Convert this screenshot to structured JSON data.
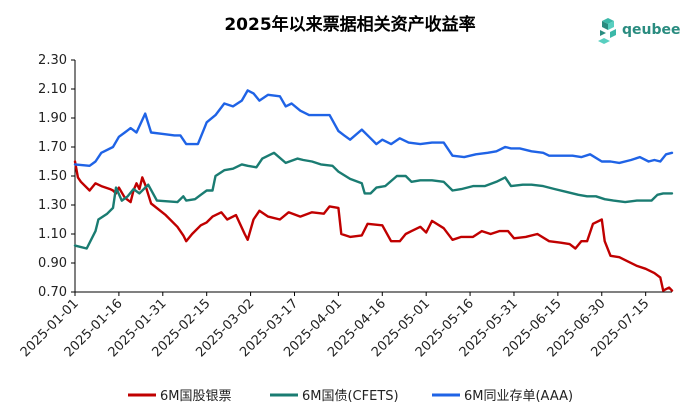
{
  "logo": {
    "text": "qeubee"
  },
  "chart_data": {
    "type": "line",
    "title": "2025年以来票据相关资产收益率",
    "xlabel": "",
    "ylabel": "",
    "ylim": [
      0.7,
      2.3
    ],
    "yticks": [
      "2.30",
      "2.10",
      "1.90",
      "1.70",
      "1.50",
      "1.30",
      "1.10",
      "0.90",
      "0.70"
    ],
    "xticks": [
      "2025-01-01",
      "2025-01-16",
      "2025-01-31",
      "2025-02-15",
      "2025-03-02",
      "2025-03-17",
      "2025-04-01",
      "2025-04-16",
      "2025-05-01",
      "2025-05-16",
      "2025-05-31",
      "2025-06-15",
      "2025-06-30",
      "2025-07-15"
    ],
    "x_range": [
      "2025-01-01",
      "2025-07-24"
    ],
    "grid": false,
    "legend_position": "bottom",
    "series": [
      {
        "name": "6M国股银票",
        "color": "#c00000",
        "points": [
          [
            "2025-01-01",
            1.6
          ],
          [
            "2025-01-02",
            1.49
          ],
          [
            "2025-01-03",
            1.46
          ],
          [
            "2025-01-06",
            1.4
          ],
          [
            "2025-01-08",
            1.45
          ],
          [
            "2025-01-10",
            1.43
          ],
          [
            "2025-01-13",
            1.41
          ],
          [
            "2025-01-14",
            1.4
          ],
          [
            "2025-01-15",
            1.38
          ],
          [
            "2025-01-16",
            1.42
          ],
          [
            "2025-01-18",
            1.35
          ],
          [
            "2025-01-20",
            1.32
          ],
          [
            "2025-01-21",
            1.4
          ],
          [
            "2025-01-22",
            1.45
          ],
          [
            "2025-01-23",
            1.41
          ],
          [
            "2025-01-24",
            1.49
          ],
          [
            "2025-01-25",
            1.44
          ],
          [
            "2025-01-27",
            1.31
          ],
          [
            "2025-02-01",
            1.23
          ],
          [
            "2025-02-05",
            1.15
          ],
          [
            "2025-02-07",
            1.09
          ],
          [
            "2025-02-08",
            1.05
          ],
          [
            "2025-02-10",
            1.1
          ],
          [
            "2025-02-13",
            1.16
          ],
          [
            "2025-02-15",
            1.18
          ],
          [
            "2025-02-17",
            1.22
          ],
          [
            "2025-02-20",
            1.25
          ],
          [
            "2025-02-22",
            1.2
          ],
          [
            "2025-02-25",
            1.23
          ],
          [
            "2025-02-28",
            1.1
          ],
          [
            "2025-03-01",
            1.06
          ],
          [
            "2025-03-03",
            1.2
          ],
          [
            "2025-03-05",
            1.26
          ],
          [
            "2025-03-08",
            1.22
          ],
          [
            "2025-03-12",
            1.2
          ],
          [
            "2025-03-15",
            1.25
          ],
          [
            "2025-03-19",
            1.22
          ],
          [
            "2025-03-23",
            1.25
          ],
          [
            "2025-03-27",
            1.24
          ],
          [
            "2025-03-29",
            1.29
          ],
          [
            "2025-04-01",
            1.28
          ],
          [
            "2025-04-02",
            1.1
          ],
          [
            "2025-04-05",
            1.08
          ],
          [
            "2025-04-09",
            1.09
          ],
          [
            "2025-04-11",
            1.17
          ],
          [
            "2025-04-16",
            1.16
          ],
          [
            "2025-04-19",
            1.05
          ],
          [
            "2025-04-22",
            1.05
          ],
          [
            "2025-04-24",
            1.1
          ],
          [
            "2025-04-26",
            1.12
          ],
          [
            "2025-04-29",
            1.15
          ],
          [
            "2025-05-01",
            1.11
          ],
          [
            "2025-05-03",
            1.19
          ],
          [
            "2025-05-07",
            1.14
          ],
          [
            "2025-05-10",
            1.06
          ],
          [
            "2025-05-13",
            1.08
          ],
          [
            "2025-05-17",
            1.08
          ],
          [
            "2025-05-20",
            1.12
          ],
          [
            "2025-05-23",
            1.1
          ],
          [
            "2025-05-26",
            1.12
          ],
          [
            "2025-05-29",
            1.12
          ],
          [
            "2025-05-31",
            1.07
          ],
          [
            "2025-06-04",
            1.08
          ],
          [
            "2025-06-08",
            1.1
          ],
          [
            "2025-06-12",
            1.05
          ],
          [
            "2025-06-16",
            1.04
          ],
          [
            "2025-06-19",
            1.03
          ],
          [
            "2025-06-21",
            1.0
          ],
          [
            "2025-06-23",
            1.05
          ],
          [
            "2025-06-25",
            1.05
          ],
          [
            "2025-06-27",
            1.17
          ],
          [
            "2025-06-30",
            1.2
          ],
          [
            "2025-07-01",
            1.05
          ],
          [
            "2025-07-03",
            0.95
          ],
          [
            "2025-07-06",
            0.94
          ],
          [
            "2025-07-09",
            0.91
          ],
          [
            "2025-07-12",
            0.88
          ],
          [
            "2025-07-15",
            0.86
          ],
          [
            "2025-07-18",
            0.83
          ],
          [
            "2025-07-20",
            0.8
          ],
          [
            "2025-07-21",
            0.71
          ],
          [
            "2025-07-23",
            0.73
          ],
          [
            "2025-07-24",
            0.71
          ]
        ]
      },
      {
        "name": "6M国债(CFETS)",
        "color": "#1a7c72",
        "points": [
          [
            "2025-01-01",
            1.02
          ],
          [
            "2025-01-05",
            1.0
          ],
          [
            "2025-01-08",
            1.12
          ],
          [
            "2025-01-09",
            1.2
          ],
          [
            "2025-01-12",
            1.24
          ],
          [
            "2025-01-14",
            1.28
          ],
          [
            "2025-01-15",
            1.42
          ],
          [
            "2025-01-17",
            1.33
          ],
          [
            "2025-01-19",
            1.36
          ],
          [
            "2025-01-21",
            1.41
          ],
          [
            "2025-01-23",
            1.38
          ],
          [
            "2025-01-26",
            1.44
          ],
          [
            "2025-01-29",
            1.33
          ],
          [
            "2025-02-05",
            1.32
          ],
          [
            "2025-02-07",
            1.36
          ],
          [
            "2025-02-08",
            1.33
          ],
          [
            "2025-02-11",
            1.34
          ],
          [
            "2025-02-13",
            1.37
          ],
          [
            "2025-02-15",
            1.4
          ],
          [
            "2025-02-17",
            1.4
          ],
          [
            "2025-02-18",
            1.5
          ],
          [
            "2025-02-21",
            1.54
          ],
          [
            "2025-02-24",
            1.55
          ],
          [
            "2025-02-27",
            1.58
          ],
          [
            "2025-03-01",
            1.57
          ],
          [
            "2025-03-04",
            1.56
          ],
          [
            "2025-03-06",
            1.62
          ],
          [
            "2025-03-10",
            1.66
          ],
          [
            "2025-03-14",
            1.59
          ],
          [
            "2025-03-18",
            1.62
          ],
          [
            "2025-03-20",
            1.61
          ],
          [
            "2025-03-23",
            1.6
          ],
          [
            "2025-03-26",
            1.58
          ],
          [
            "2025-03-30",
            1.57
          ],
          [
            "2025-04-01",
            1.53
          ],
          [
            "2025-04-05",
            1.48
          ],
          [
            "2025-04-09",
            1.45
          ],
          [
            "2025-04-10",
            1.38
          ],
          [
            "2025-04-12",
            1.38
          ],
          [
            "2025-04-14",
            1.42
          ],
          [
            "2025-04-17",
            1.43
          ],
          [
            "2025-04-21",
            1.5
          ],
          [
            "2025-04-24",
            1.5
          ],
          [
            "2025-04-26",
            1.46
          ],
          [
            "2025-04-29",
            1.47
          ],
          [
            "2025-05-03",
            1.47
          ],
          [
            "2025-05-07",
            1.46
          ],
          [
            "2025-05-10",
            1.4
          ],
          [
            "2025-05-13",
            1.41
          ],
          [
            "2025-05-17",
            1.43
          ],
          [
            "2025-05-21",
            1.43
          ],
          [
            "2025-05-25",
            1.46
          ],
          [
            "2025-05-28",
            1.49
          ],
          [
            "2025-05-30",
            1.43
          ],
          [
            "2025-06-03",
            1.44
          ],
          [
            "2025-06-06",
            1.44
          ],
          [
            "2025-06-10",
            1.43
          ],
          [
            "2025-06-14",
            1.41
          ],
          [
            "2025-06-18",
            1.39
          ],
          [
            "2025-06-22",
            1.37
          ],
          [
            "2025-06-25",
            1.36
          ],
          [
            "2025-06-28",
            1.36
          ],
          [
            "2025-07-01",
            1.34
          ],
          [
            "2025-07-04",
            1.33
          ],
          [
            "2025-07-08",
            1.32
          ],
          [
            "2025-07-12",
            1.33
          ],
          [
            "2025-07-15",
            1.33
          ],
          [
            "2025-07-17",
            1.33
          ],
          [
            "2025-07-19",
            1.37
          ],
          [
            "2025-07-21",
            1.38
          ],
          [
            "2025-07-24",
            1.38
          ]
        ]
      },
      {
        "name": "6M同业存单(AAA)",
        "color": "#1f63e6",
        "points": [
          [
            "2025-01-01",
            1.58
          ],
          [
            "2025-01-06",
            1.57
          ],
          [
            "2025-01-08",
            1.6
          ],
          [
            "2025-01-10",
            1.66
          ],
          [
            "2025-01-14",
            1.7
          ],
          [
            "2025-01-16",
            1.77
          ],
          [
            "2025-01-18",
            1.8
          ],
          [
            "2025-01-20",
            1.83
          ],
          [
            "2025-01-22",
            1.8
          ],
          [
            "2025-01-25",
            1.93
          ],
          [
            "2025-01-27",
            1.8
          ],
          [
            "2025-01-31",
            1.79
          ],
          [
            "2025-02-04",
            1.78
          ],
          [
            "2025-02-06",
            1.78
          ],
          [
            "2025-02-08",
            1.72
          ],
          [
            "2025-02-12",
            1.72
          ],
          [
            "2025-02-14",
            1.82
          ],
          [
            "2025-02-15",
            1.87
          ],
          [
            "2025-02-18",
            1.92
          ],
          [
            "2025-02-21",
            2.0
          ],
          [
            "2025-02-24",
            1.98
          ],
          [
            "2025-02-27",
            2.02
          ],
          [
            "2025-03-01",
            2.09
          ],
          [
            "2025-03-03",
            2.07
          ],
          [
            "2025-03-05",
            2.02
          ],
          [
            "2025-03-08",
            2.06
          ],
          [
            "2025-03-12",
            2.05
          ],
          [
            "2025-03-14",
            1.98
          ],
          [
            "2025-03-16",
            2.0
          ],
          [
            "2025-03-19",
            1.95
          ],
          [
            "2025-03-22",
            1.92
          ],
          [
            "2025-03-25",
            1.92
          ],
          [
            "2025-03-29",
            1.92
          ],
          [
            "2025-04-01",
            1.81
          ],
          [
            "2025-04-03",
            1.78
          ],
          [
            "2025-04-05",
            1.75
          ],
          [
            "2025-04-09",
            1.82
          ],
          [
            "2025-04-12",
            1.76
          ],
          [
            "2025-04-14",
            1.72
          ],
          [
            "2025-04-16",
            1.75
          ],
          [
            "2025-04-19",
            1.72
          ],
          [
            "2025-04-22",
            1.76
          ],
          [
            "2025-04-25",
            1.73
          ],
          [
            "2025-04-29",
            1.72
          ],
          [
            "2025-05-03",
            1.73
          ],
          [
            "2025-05-07",
            1.73
          ],
          [
            "2025-05-10",
            1.64
          ],
          [
            "2025-05-14",
            1.63
          ],
          [
            "2025-05-18",
            1.65
          ],
          [
            "2025-05-22",
            1.66
          ],
          [
            "2025-05-25",
            1.67
          ],
          [
            "2025-05-28",
            1.7
          ],
          [
            "2025-05-30",
            1.69
          ],
          [
            "2025-06-02",
            1.69
          ],
          [
            "2025-06-06",
            1.67
          ],
          [
            "2025-06-10",
            1.66
          ],
          [
            "2025-06-12",
            1.64
          ],
          [
            "2025-06-16",
            1.64
          ],
          [
            "2025-06-20",
            1.64
          ],
          [
            "2025-06-23",
            1.63
          ],
          [
            "2025-06-26",
            1.65
          ],
          [
            "2025-06-30",
            1.6
          ],
          [
            "2025-07-03",
            1.6
          ],
          [
            "2025-07-06",
            1.59
          ],
          [
            "2025-07-10",
            1.61
          ],
          [
            "2025-07-13",
            1.63
          ],
          [
            "2025-07-16",
            1.6
          ],
          [
            "2025-07-18",
            1.61
          ],
          [
            "2025-07-20",
            1.6
          ],
          [
            "2025-07-22",
            1.65
          ],
          [
            "2025-07-24",
            1.66
          ]
        ]
      }
    ]
  }
}
